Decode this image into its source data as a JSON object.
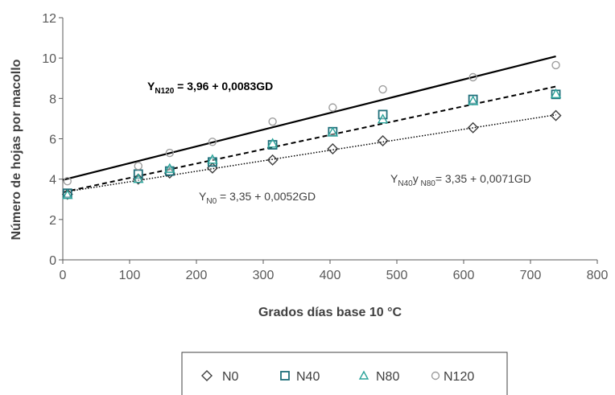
{
  "chart_data": {
    "type": "scatter",
    "xlabel": "Grados días base 10 °C",
    "ylabel": "Número de hojas por macollo",
    "xlim": [
      0,
      800
    ],
    "ylim": [
      0,
      12
    ],
    "x_ticks": [
      "0",
      "100",
      "200",
      "300",
      "400",
      "500",
      "600",
      "700",
      "800"
    ],
    "y_ticks": [
      "0",
      "2",
      "4",
      "6",
      "8",
      "10",
      "12"
    ],
    "grid": false,
    "legend_position": "bottom",
    "series": [
      {
        "name": "N0",
        "marker": "diamond",
        "color": "#404040",
        "x": [
          7,
          113,
          160,
          224,
          314,
          404,
          479,
          614,
          738
        ],
        "y": [
          3.25,
          4.0,
          4.3,
          4.55,
          4.95,
          5.5,
          5.9,
          6.55,
          7.15
        ]
      },
      {
        "name": "N40",
        "marker": "square",
        "color": "#1f6f7a",
        "x": [
          7,
          113,
          160,
          224,
          314,
          404,
          479,
          614,
          738
        ],
        "y": [
          3.3,
          4.25,
          4.4,
          4.85,
          5.7,
          6.35,
          7.2,
          7.95,
          8.2
        ]
      },
      {
        "name": "N80",
        "marker": "triangle",
        "color": "#2aa39a",
        "x": [
          7,
          113,
          160,
          224,
          314,
          404,
          479,
          614,
          738
        ],
        "y": [
          3.2,
          4.0,
          4.5,
          4.95,
          5.75,
          6.3,
          6.95,
          7.85,
          8.2
        ]
      },
      {
        "name": "N120",
        "marker": "circle",
        "color": "#9e9e9e",
        "x": [
          7,
          113,
          160,
          224,
          314,
          404,
          479,
          614,
          738
        ],
        "y": [
          3.9,
          4.65,
          5.3,
          5.85,
          6.85,
          7.55,
          8.45,
          9.05,
          9.65
        ]
      }
    ],
    "trendlines": [
      {
        "series": "N0",
        "intercept": 3.35,
        "slope": 0.0052,
        "style": "dotted",
        "width": 1.5
      },
      {
        "series": "N40, N80",
        "intercept": 3.35,
        "slope": 0.0071,
        "style": "dashed",
        "width": 2
      },
      {
        "series": "N120",
        "intercept": 3.96,
        "slope": 0.0083,
        "style": "solid",
        "width": 2.2
      }
    ],
    "trend_x_range": [
      0,
      738
    ],
    "annotations": [
      {
        "id": "n120",
        "prefix": "Y",
        "sub": "N120",
        "text": " = 3,96 + 0,0083GD",
        "bold": true
      },
      {
        "id": "n0",
        "prefix": "Y",
        "sub": "N0",
        "text": " = 3,35 + 0,0052GD",
        "bold": false
      },
      {
        "id": "n40n80",
        "prefix": "Y",
        "sub": "N40",
        "middle": "y",
        "sub2": " N80",
        "text": "= 3,35 + 0,0071GD",
        "bold": false
      }
    ]
  }
}
